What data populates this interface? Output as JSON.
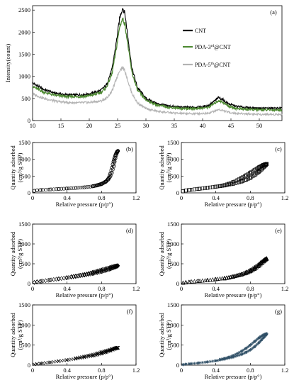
{
  "chart_data": [
    {
      "id": "a",
      "type": "line",
      "panel_label": "(a)",
      "xlabel": "",
      "ylabel": "Intensity(count)",
      "xlim": [
        10,
        54
      ],
      "ylim": [
        0,
        2600
      ],
      "xticks": [
        10,
        15,
        20,
        25,
        30,
        35,
        40,
        45,
        50
      ],
      "yticks": [
        0,
        500,
        1000,
        1500,
        2000,
        2500
      ],
      "legend": {
        "placement": "top-right"
      },
      "series": [
        {
          "name": "CNT",
          "sup": "",
          "color": "#000000",
          "x": [
            10,
            12,
            14,
            16,
            18,
            20,
            22,
            23,
            24,
            24.8,
            25.4,
            25.9,
            26.3,
            26.8,
            27.5,
            28.5,
            30,
            32,
            34,
            36,
            38,
            40,
            41,
            42,
            42.8,
            43.5,
            44.5,
            46,
            48,
            50,
            52,
            54
          ],
          "y": [
            850,
            700,
            620,
            580,
            580,
            600,
            680,
            800,
            1150,
            1800,
            2350,
            2550,
            2420,
            1900,
            1200,
            750,
            500,
            380,
            330,
            300,
            300,
            310,
            340,
            430,
            520,
            480,
            380,
            320,
            290,
            280,
            280,
            280
          ]
        },
        {
          "name": "PDA-3",
          "sup": "rd",
          "suffix": "@CNT",
          "color": "#4e8a33",
          "x": [
            10,
            12,
            14,
            16,
            18,
            20,
            22,
            23,
            24,
            24.8,
            25.4,
            25.9,
            26.3,
            26.8,
            27.5,
            28.5,
            30,
            32,
            34,
            36,
            38,
            40,
            41,
            42,
            42.8,
            43.5,
            44.5,
            46,
            48,
            50,
            52,
            54
          ],
          "y": [
            770,
            640,
            570,
            540,
            540,
            560,
            630,
            740,
            1050,
            1650,
            2150,
            2300,
            2180,
            1720,
            1100,
            690,
            460,
            350,
            300,
            275,
            270,
            280,
            300,
            380,
            450,
            420,
            330,
            270,
            250,
            240,
            240,
            240
          ]
        },
        {
          "name": "PDA-5",
          "sup": "th",
          "suffix": "@CNT",
          "color": "#b3b3b3",
          "x": [
            10,
            12,
            14,
            16,
            18,
            20,
            22,
            23,
            24,
            24.8,
            25.4,
            25.9,
            26.3,
            26.8,
            27.5,
            28.5,
            30,
            32,
            34,
            36,
            38,
            40,
            41,
            42,
            42.8,
            43.5,
            44.5,
            46,
            48,
            50,
            52,
            54
          ],
          "y": [
            600,
            500,
            440,
            410,
            400,
            410,
            440,
            500,
            660,
            950,
            1150,
            1200,
            1130,
            900,
            620,
            400,
            270,
            210,
            180,
            160,
            155,
            160,
            170,
            210,
            250,
            230,
            190,
            160,
            150,
            140,
            140,
            140
          ]
        }
      ]
    },
    {
      "id": "b",
      "type": "scatter",
      "panel_label": "(b)",
      "marker": "circle",
      "color": "#000000",
      "xlabel": "Relative pressure (p/p°)",
      "ylabel_line1": "Quantity adsorbed",
      "ylabel_line2": "(cm³/g STP)",
      "xlim": [
        0,
        1.2
      ],
      "ylim": [
        0,
        1500
      ],
      "xticks": [
        "0",
        "0.4",
        "0.8",
        "1.2"
      ],
      "yticks": [
        "0",
        "500",
        "1000",
        "1500"
      ],
      "adsorption": {
        "x": [
          0.02,
          0.05,
          0.1,
          0.2,
          0.3,
          0.4,
          0.5,
          0.6,
          0.7,
          0.75,
          0.8,
          0.85,
          0.88,
          0.9,
          0.92,
          0.94,
          0.95,
          0.96,
          0.97,
          0.98,
          0.99
        ],
        "y": [
          60,
          75,
          85,
          100,
          115,
          130,
          145,
          165,
          195,
          220,
          260,
          330,
          400,
          480,
          600,
          780,
          900,
          1020,
          1120,
          1200,
          1250
        ]
      },
      "desorption": {
        "x": [
          0.99,
          0.98,
          0.97,
          0.96,
          0.95,
          0.94,
          0.93,
          0.92,
          0.9,
          0.88,
          0.85,
          0.8,
          0.75,
          0.7
        ],
        "y": [
          1250,
          1230,
          1180,
          1120,
          1040,
          950,
          850,
          740,
          560,
          430,
          340,
          270,
          230,
          200
        ]
      }
    },
    {
      "id": "c",
      "type": "scatter",
      "panel_label": "(c)",
      "marker": "square",
      "color": "#000000",
      "xlabel": "Relative pressure (p/p°)",
      "ylabel_line1": "Quantity adsorbed",
      "ylabel_line2": "(cm³/g STP)",
      "xlim": [
        0,
        1.2
      ],
      "ylim": [
        0,
        1500
      ],
      "xticks": [
        "0",
        "0.4",
        "0.8",
        "1.2"
      ],
      "yticks": [
        "0",
        "500",
        "1000",
        "1500"
      ],
      "adsorption": {
        "x": [
          0.02,
          0.05,
          0.1,
          0.2,
          0.3,
          0.4,
          0.5,
          0.6,
          0.7,
          0.75,
          0.8,
          0.85,
          0.9,
          0.93,
          0.96,
          0.98,
          0.99
        ],
        "y": [
          50,
          70,
          90,
          120,
          150,
          185,
          220,
          270,
          340,
          390,
          450,
          530,
          630,
          700,
          780,
          830,
          860
        ]
      },
      "desorption": {
        "x": [
          0.99,
          0.97,
          0.95,
          0.92,
          0.9,
          0.85,
          0.8,
          0.75,
          0.7,
          0.65,
          0.6,
          0.55,
          0.5,
          0.45
        ],
        "y": [
          860,
          850,
          830,
          790,
          760,
          680,
          600,
          520,
          450,
          380,
          320,
          270,
          230,
          200
        ]
      }
    },
    {
      "id": "d",
      "type": "scatter",
      "panel_label": "(d)",
      "marker": "diamond",
      "color": "#000000",
      "xlabel": "Relative pressure (p/p°)",
      "ylabel_line1": "Quantity adsorbed",
      "ylabel_line2": "(cm³/g STP)",
      "xlim": [
        0,
        1.2
      ],
      "ylim": [
        0,
        1500
      ],
      "xticks": [
        "0",
        "0.4",
        "0.8",
        "1.2"
      ],
      "yticks": [
        "0",
        "500",
        "1000",
        "1500"
      ],
      "adsorption": {
        "x": [
          0.02,
          0.05,
          0.1,
          0.2,
          0.3,
          0.4,
          0.5,
          0.6,
          0.7,
          0.75,
          0.8,
          0.85,
          0.9,
          0.93,
          0.96,
          0.98,
          0.99
        ],
        "y": [
          30,
          45,
          60,
          90,
          120,
          150,
          180,
          215,
          255,
          280,
          305,
          335,
          370,
          395,
          420,
          440,
          450
        ]
      },
      "desorption": {
        "x": [
          0.99,
          0.97,
          0.95,
          0.92,
          0.9,
          0.85,
          0.8,
          0.75,
          0.7,
          0.65,
          0.6,
          0.55,
          0.5,
          0.45
        ],
        "y": [
          450,
          445,
          435,
          420,
          405,
          375,
          345,
          315,
          285,
          255,
          230,
          210,
          190,
          175
        ]
      }
    },
    {
      "id": "e",
      "type": "scatter",
      "panel_label": "(e)",
      "marker": "triangle",
      "color": "#000000",
      "xlabel": "Relative pressure (p/p°)",
      "ylabel_line1": "Quantity adsorbed",
      "ylabel_line2": "(cm³/g STP)",
      "xlim": [
        0,
        1.2
      ],
      "ylim": [
        0,
        1500
      ],
      "xticks": [
        "0",
        "0.4",
        "0.8",
        "1.2"
      ],
      "yticks": [
        "0",
        "500",
        "1000",
        "1500"
      ],
      "adsorption": {
        "x": [
          0.02,
          0.05,
          0.1,
          0.2,
          0.3,
          0.4,
          0.5,
          0.6,
          0.7,
          0.75,
          0.8,
          0.85,
          0.9,
          0.93,
          0.96,
          0.98,
          0.99
        ],
        "y": [
          20,
          30,
          45,
          65,
          85,
          110,
          140,
          180,
          230,
          265,
          310,
          370,
          450,
          510,
          570,
          610,
          630
        ]
      },
      "desorption": {
        "x": [
          0.99,
          0.97,
          0.95,
          0.92,
          0.9,
          0.85,
          0.8,
          0.75,
          0.7,
          0.65,
          0.6,
          0.55,
          0.5
        ],
        "y": [
          630,
          610,
          580,
          530,
          490,
          410,
          340,
          285,
          240,
          205,
          175,
          150,
          130
        ]
      }
    },
    {
      "id": "f",
      "type": "scatter",
      "panel_label": "(f)",
      "marker": "cross",
      "color": "#000000",
      "xlabel": "Relative pressure (p/p°)",
      "ylabel_line1": "Quantity adsorbed",
      "ylabel_line2": "(cm³/g STP)",
      "xlim": [
        0,
        1.2
      ],
      "ylim": [
        0,
        1500
      ],
      "xticks": [
        "0",
        "0.4",
        "0.8",
        "1.2"
      ],
      "yticks": [
        "0",
        "500",
        "1000",
        "1500"
      ],
      "adsorption": {
        "x": [
          0.02,
          0.05,
          0.1,
          0.2,
          0.3,
          0.4,
          0.5,
          0.6,
          0.7,
          0.75,
          0.8,
          0.85,
          0.9,
          0.93,
          0.96,
          0.98,
          0.99
        ],
        "y": [
          20,
          30,
          45,
          70,
          100,
          130,
          160,
          195,
          235,
          260,
          290,
          320,
          360,
          385,
          410,
          425,
          435
        ]
      },
      "desorption": {
        "x": [
          0.99,
          0.97,
          0.95,
          0.92,
          0.9,
          0.85,
          0.8,
          0.75,
          0.7,
          0.65,
          0.6,
          0.55,
          0.5
        ],
        "y": [
          435,
          430,
          420,
          400,
          385,
          355,
          325,
          295,
          265,
          240,
          215,
          195,
          175
        ]
      }
    },
    {
      "id": "g",
      "type": "scatter",
      "panel_label": "(g)",
      "marker": "star",
      "color": "#2f4f66",
      "xlabel": "Relative pressure (p/p°)",
      "ylabel_line1": "Quantity adsorbed",
      "ylabel_line2": "(cm³/g STP)",
      "xlim": [
        0,
        1.2
      ],
      "ylim": [
        0,
        1500
      ],
      "xticks": [
        "0",
        "0.4",
        "0.8",
        "1.2"
      ],
      "yticks": [
        "0",
        "500",
        "1000",
        "1500"
      ],
      "adsorption": {
        "x": [
          0.02,
          0.05,
          0.1,
          0.2,
          0.3,
          0.4,
          0.5,
          0.6,
          0.7,
          0.75,
          0.8,
          0.85,
          0.9,
          0.93,
          0.96,
          0.98,
          0.99
        ],
        "y": [
          15,
          25,
          35,
          55,
          80,
          110,
          150,
          200,
          270,
          320,
          380,
          460,
          560,
          630,
          700,
          750,
          780
        ]
      },
      "desorption": {
        "x": [
          0.99,
          0.97,
          0.95,
          0.92,
          0.9,
          0.85,
          0.8,
          0.75,
          0.7,
          0.65,
          0.6,
          0.55,
          0.5,
          0.45
        ],
        "y": [
          780,
          770,
          750,
          710,
          680,
          590,
          500,
          420,
          350,
          290,
          240,
          200,
          170,
          145
        ]
      }
    }
  ]
}
